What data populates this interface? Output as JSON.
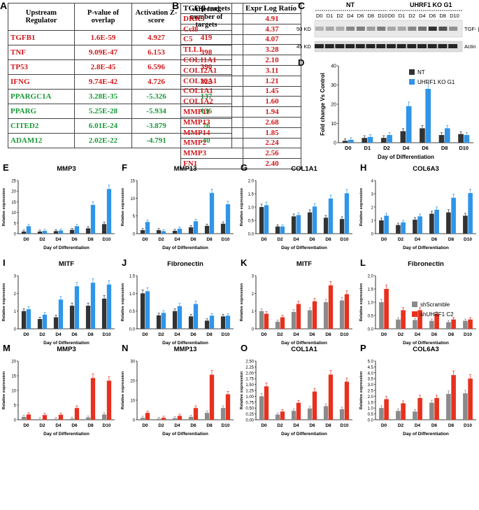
{
  "colors": {
    "nt": "#333333",
    "ko": "#2f95e8",
    "scr": "#8a8a8a",
    "shu": "#e8301e",
    "red_text": "#d0191c",
    "green_text": "#1a9a3a"
  },
  "tableA": {
    "letter": "A",
    "headers": [
      "Upstream Regulator",
      "P-value of overlap",
      "Activation Z-score",
      "Affected number of targets"
    ],
    "rows": [
      {
        "reg": "TGFB1",
        "p": "1.6E-59",
        "z": "4.927",
        "n": "419",
        "color": "red"
      },
      {
        "reg": "TNF",
        "p": "9.09E-47",
        "z": "6.153",
        "n": "398",
        "color": "red"
      },
      {
        "reg": "TP53",
        "p": "2.8E-45",
        "z": "6.596",
        "n": "390",
        "color": "red"
      },
      {
        "reg": "IFNG",
        "p": "9.74E-42",
        "z": "4.726",
        "n": "322",
        "color": "red"
      },
      {
        "reg": "PPARGC1A",
        "p": "3.28E-35",
        "z": "-5.326",
        "n": "137",
        "color": "green"
      },
      {
        "reg": "PPARG",
        "p": "5.25E-28",
        "z": "-5.934",
        "n": "136",
        "color": "green"
      },
      {
        "reg": "CITED2",
        "p": "6.01E-24",
        "z": "-3.879",
        "n": "76",
        "color": "green"
      },
      {
        "reg": "ADAM12",
        "p": "2.02E-22",
        "z": "-4.791",
        "n": "40",
        "color": "green"
      }
    ]
  },
  "tableB": {
    "letter": "B",
    "headers": [
      "TGF-β targets",
      "Expr Log Ratio"
    ],
    "rows": [
      [
        "DKK3",
        "4.91"
      ],
      [
        "Ccl8",
        "4.37"
      ],
      [
        "C5",
        "4.07"
      ],
      [
        "TLL1",
        "3.28"
      ],
      [
        "COL11A1",
        "2.10"
      ],
      [
        "COL12A1",
        "3.11"
      ],
      [
        "COL16A1",
        "1.21"
      ],
      [
        "COL1A1",
        "1.45"
      ],
      [
        "COL1A2",
        "1.60"
      ],
      [
        "MMP11",
        "1.94"
      ],
      [
        "MMP13",
        "2.68"
      ],
      [
        "MMP14",
        "1.85"
      ],
      [
        "MMP2",
        "2.24"
      ],
      [
        "MMP3",
        "2.56"
      ],
      [
        "FN1",
        "2.40"
      ]
    ]
  },
  "blot": {
    "letter": "C",
    "group_nt": "NT",
    "group_ko": "UHRF1 KO G1",
    "lanes": [
      "D0",
      "D1",
      "D2",
      "D4",
      "D6",
      "D8",
      "D10",
      "D0",
      "D1",
      "D2",
      "D4",
      "D6",
      "D8",
      "D10"
    ],
    "row1_left": "50 KD",
    "row1_right": "TGF- β",
    "row2_left": "45 KD",
    "row2_right": "Actin"
  },
  "common": {
    "xlabel": "Day of Differentiation",
    "ylabel": "Relative expression"
  },
  "chart_data": [
    {
      "id": "D",
      "letter": "D",
      "type": "bar",
      "title": "",
      "ylabel": "Fold change Vs Control",
      "xlabel": "Day of Differentiation",
      "categories": [
        "D0",
        "D1",
        "D2",
        "D4",
        "D6",
        "D8",
        "D10"
      ],
      "ylim": [
        0,
        40
      ],
      "yticks": [
        0,
        10,
        20,
        30,
        40
      ],
      "legend": [
        "NT",
        "UHRF1 KO G1"
      ],
      "series": [
        {
          "name": "NT",
          "values": [
            1,
            2.5,
            2.5,
            6,
            7.5,
            4,
            4.5
          ]
        },
        {
          "name": "UHRF1 KO G1",
          "values": [
            1.5,
            3,
            4,
            19,
            28,
            7.5,
            4
          ]
        }
      ]
    },
    {
      "id": "E",
      "letter": "E",
      "type": "bar",
      "title": "MMP3",
      "categories": [
        "D0",
        "D2",
        "D4",
        "D6",
        "D8",
        "D10"
      ],
      "ylim": [
        0,
        25
      ],
      "yticks": [
        0,
        5,
        10,
        15,
        20,
        25
      ],
      "series": [
        {
          "name": "NT",
          "values": [
            1,
            1,
            1.2,
            1.8,
            2.5,
            4.5
          ]
        },
        {
          "name": "UHRF1 KO G1",
          "values": [
            3.5,
            1.3,
            1.5,
            3.5,
            13.5,
            21
          ]
        }
      ]
    },
    {
      "id": "F",
      "letter": "F",
      "type": "bar",
      "title": "MMP13",
      "categories": [
        "D0",
        "D2",
        "D4",
        "D6",
        "D8",
        "D10"
      ],
      "ylim": [
        0,
        15
      ],
      "yticks": [
        0,
        5,
        10,
        15
      ],
      "series": [
        {
          "name": "NT",
          "values": [
            1,
            1,
            0.8,
            1.8,
            2.2,
            2.8
          ]
        },
        {
          "name": "UHRF1 KO G1",
          "values": [
            3.3,
            0.7,
            1.4,
            3.5,
            11.5,
            8.3
          ]
        }
      ]
    },
    {
      "id": "G",
      "letter": "G",
      "type": "bar",
      "title": "COL1A1",
      "categories": [
        "D0",
        "D2",
        "D4",
        "D6",
        "D8",
        "D10"
      ],
      "ylim": [
        0,
        2.0
      ],
      "yticks": [
        0.0,
        0.5,
        1.0,
        1.5,
        2.0
      ],
      "series": [
        {
          "name": "NT",
          "values": [
            1.0,
            0.27,
            0.65,
            0.8,
            0.6,
            0.55
          ]
        },
        {
          "name": "UHRF1 KO G1",
          "values": [
            1.07,
            0.27,
            0.7,
            1.02,
            1.32,
            1.52
          ]
        }
      ]
    },
    {
      "id": "H",
      "letter": "H",
      "type": "bar",
      "title": "COL6A3",
      "categories": [
        "D0",
        "D2",
        "D4",
        "D6",
        "D8",
        "D10"
      ],
      "ylim": [
        0,
        4
      ],
      "yticks": [
        0,
        1,
        2,
        3,
        4
      ],
      "series": [
        {
          "name": "NT",
          "values": [
            1.0,
            0.65,
            1.05,
            1.5,
            1.6,
            1.35
          ]
        },
        {
          "name": "UHRF1 KO G1",
          "values": [
            1.35,
            0.85,
            1.3,
            1.8,
            2.7,
            3.05
          ]
        }
      ]
    },
    {
      "id": "I",
      "letter": "I",
      "type": "bar",
      "title": "MITF",
      "categories": [
        "D0",
        "D2",
        "D4",
        "D6",
        "D8",
        "D10"
      ],
      "ylim": [
        0,
        3
      ],
      "yticks": [
        0,
        1,
        2,
        3
      ],
      "series": [
        {
          "name": "NT",
          "values": [
            1.0,
            0.55,
            0.65,
            1.3,
            1.3,
            1.7
          ]
        },
        {
          "name": "UHRF1 KO G1",
          "values": [
            1.1,
            0.8,
            1.65,
            2.4,
            2.6,
            2.5
          ]
        }
      ]
    },
    {
      "id": "J",
      "letter": "J",
      "type": "bar",
      "title": "Fibronectin",
      "categories": [
        "D0",
        "D2",
        "D4",
        "D6",
        "D8",
        "D10"
      ],
      "ylim": [
        0,
        1.5
      ],
      "yticks": [
        0.0,
        0.5,
        1.0,
        1.5
      ],
      "series": [
        {
          "name": "NT",
          "values": [
            1.0,
            0.38,
            0.5,
            0.35,
            0.23,
            0.35
          ]
        },
        {
          "name": "UHRF1 KO G1",
          "values": [
            1.06,
            0.45,
            0.64,
            0.7,
            0.37,
            0.37
          ]
        }
      ]
    },
    {
      "id": "K",
      "letter": "K",
      "type": "bar",
      "title": "MITF",
      "categories": [
        "D0",
        "D2",
        "D4",
        "D6",
        "D8",
        "D10"
      ],
      "ylim": [
        0,
        3
      ],
      "yticks": [
        0,
        1,
        2,
        3
      ],
      "series": [
        {
          "name": "shScramble",
          "values": [
            1.0,
            0.4,
            0.95,
            1.05,
            1.5,
            1.6
          ]
        },
        {
          "name": "shUHRF1 C2",
          "values": [
            0.85,
            0.65,
            1.4,
            1.55,
            2.45,
            1.95
          ]
        }
      ]
    },
    {
      "id": "L",
      "letter": "L",
      "type": "bar",
      "title": "Fibronectin",
      "categories": [
        "D0",
        "D2",
        "D4",
        "D6",
        "D8",
        "D10"
      ],
      "ylim": [
        0,
        2.0
      ],
      "yticks": [
        0.0,
        0.5,
        1.0,
        1.5,
        2.0
      ],
      "legend": [
        "shScramble",
        "shUHRF1 C2"
      ],
      "series": [
        {
          "name": "shScramble",
          "values": [
            1.0,
            0.35,
            0.33,
            0.3,
            0.25,
            0.3
          ]
        },
        {
          "name": "shUHRF1 C2",
          "values": [
            1.5,
            0.7,
            0.7,
            0.55,
            0.35,
            0.35
          ]
        }
      ]
    },
    {
      "id": "M",
      "letter": "M",
      "type": "bar",
      "title": "MMP3",
      "categories": [
        "D0",
        "D2",
        "D4",
        "D6",
        "D8",
        "D10"
      ],
      "ylim": [
        0,
        20
      ],
      "yticks": [
        0,
        5,
        10,
        15,
        20
      ],
      "series": [
        {
          "name": "shScramble",
          "values": [
            1.0,
            0.2,
            0.3,
            0.4,
            0.8,
            1.8
          ]
        },
        {
          "name": "shUHRF1 C2",
          "values": [
            1.8,
            1.6,
            1.7,
            4.0,
            14.2,
            13.3
          ]
        }
      ]
    },
    {
      "id": "N",
      "letter": "N",
      "type": "bar",
      "title": "MMP13",
      "categories": [
        "D0",
        "D2",
        "D4",
        "D6",
        "D8",
        "D10"
      ],
      "ylim": [
        0,
        30
      ],
      "yticks": [
        0,
        10,
        20,
        30
      ],
      "series": [
        {
          "name": "shScramble",
          "values": [
            1.0,
            0.5,
            0.8,
            1.5,
            3.5,
            6.0
          ]
        },
        {
          "name": "shUHRF1 C2",
          "values": [
            3.5,
            1.0,
            2.0,
            6.0,
            23.0,
            13.0
          ]
        }
      ]
    },
    {
      "id": "O",
      "letter": "O",
      "type": "bar",
      "title": "COL1A1",
      "categories": [
        "D0",
        "D2",
        "D4",
        "D6",
        "D8",
        "D10"
      ],
      "ylim": [
        0,
        2.5
      ],
      "yticks": [
        0.0,
        0.25,
        0.5,
        0.75,
        1.0,
        1.25,
        1.5,
        1.75,
        2.0,
        2.25,
        2.5
      ],
      "series": [
        {
          "name": "shScramble",
          "values": [
            1.0,
            0.22,
            0.38,
            0.48,
            0.58,
            0.45
          ]
        },
        {
          "name": "shUHRF1 C2",
          "values": [
            1.42,
            0.35,
            0.72,
            1.2,
            1.92,
            1.62
          ]
        }
      ]
    },
    {
      "id": "P",
      "letter": "P",
      "type": "bar",
      "title": "COL6A3",
      "categories": [
        "D0",
        "D2",
        "D4",
        "D6",
        "D8",
        "D10"
      ],
      "ylim": [
        0,
        5
      ],
      "yticks": [
        0,
        0.5,
        1,
        1.5,
        2,
        2.5,
        3,
        3.5,
        4,
        4.5,
        5
      ],
      "series": [
        {
          "name": "shScramble",
          "values": [
            1.0,
            0.75,
            0.7,
            1.45,
            2.2,
            2.25
          ]
        },
        {
          "name": "shUHRF1 C2",
          "values": [
            1.75,
            1.4,
            1.85,
            1.85,
            3.8,
            3.5
          ]
        }
      ]
    }
  ]
}
